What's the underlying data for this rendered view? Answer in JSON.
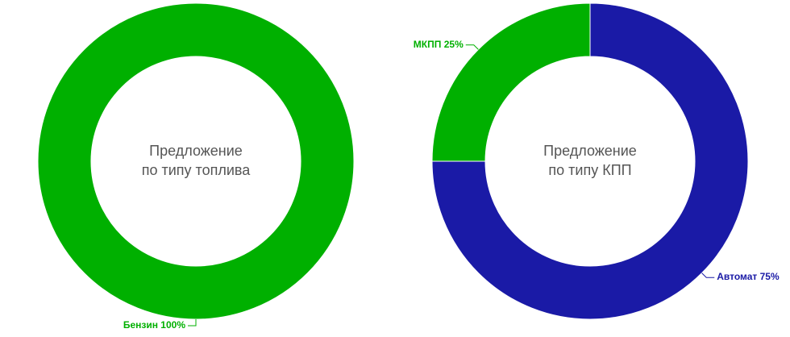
{
  "chart_data": [
    {
      "type": "donut",
      "title": [
        "Предложение",
        "по типу топлива"
      ],
      "categories": [
        "Бензин"
      ],
      "values": [
        100
      ],
      "value_labels": [
        "100%"
      ],
      "colors": [
        "#00b000"
      ]
    },
    {
      "type": "donut",
      "title": [
        "Предложение",
        "по типу КПП"
      ],
      "categories": [
        "Автомат",
        "МКПП"
      ],
      "values": [
        75,
        25
      ],
      "value_labels": [
        "75%",
        "25%"
      ],
      "colors": [
        "#1a1aa6",
        "#00b000"
      ]
    }
  ]
}
